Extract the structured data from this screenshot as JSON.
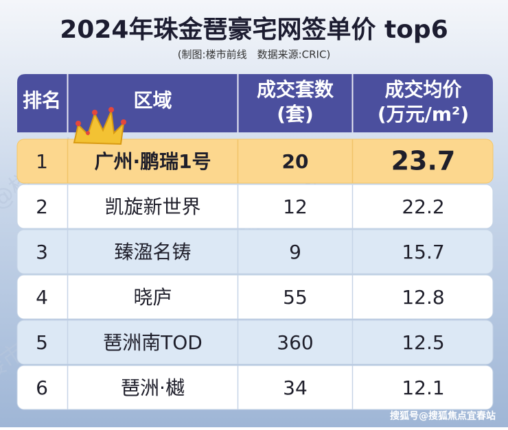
{
  "header": {
    "title": "2024年珠金琶豪宅网签单价 top6",
    "subtitle": "(制图:楼市前线　数据来源:CRIC)"
  },
  "table": {
    "columns": [
      [
        "排名"
      ],
      [
        "区域"
      ],
      [
        "成交套数",
        "(套)"
      ],
      [
        "成交均价",
        "(万元/m²)"
      ]
    ],
    "rows": [
      [
        "1",
        "广州·鹏瑞1号",
        "20",
        "23.7"
      ],
      [
        "2",
        "凯旋新世界",
        "12",
        "22.2"
      ],
      [
        "3",
        "臻溋名铸",
        "9",
        "15.7"
      ],
      [
        "4",
        "晓庐",
        "55",
        "12.8"
      ],
      [
        "5",
        "琶洲南TOD",
        "360",
        "12.5"
      ],
      [
        "6",
        "琶洲·樾",
        "34",
        "12.1"
      ]
    ]
  },
  "watermark": "@楼市前线",
  "footer": "搜狐号@搜狐焦点宜春站"
}
